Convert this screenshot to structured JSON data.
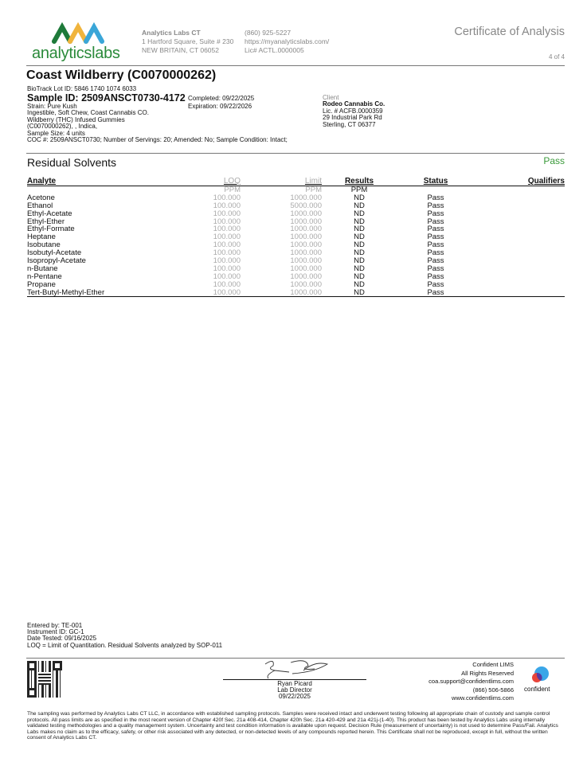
{
  "header": {
    "logo_text": "analyticslabs",
    "company": "Analytics Labs CT",
    "address1": "1 Hartford Square, Suite # 230",
    "address2": "NEW BRITAIN, CT 06052",
    "phone": "(860) 925-5227",
    "website": "https://myanalyticslabs.com/",
    "license": "Lic# ACTL.0000005",
    "doc_title": "Certificate of Analysis",
    "page": "4 of 4"
  },
  "sample": {
    "title": "Coast Wildberry (C0070000262)",
    "biotrack": "BioTrack Lot ID: 5846 1740 1074 6033",
    "sample_id": "Sample ID: 2509ANSCT0730-4172",
    "completed": "Completed: 09/22/2025",
    "expiration": "Expiration: 09/22/2026",
    "strain": "Strain: Pure Kush",
    "desc1": "Ingestible, Soft Chew, Coast Cannabis CO.",
    "desc2": "Wildberry (THC) Infused Gummies",
    "desc3": "(C0070000262), , Indica,",
    "size": "Sample Size: 4 units",
    "coc": "COC #: 2509ANSCT0730; Number of Servings: 20; Amended: No; Sample Condition: Intact;"
  },
  "client": {
    "label": "Client",
    "name": "Rodeo Cannabis Co.",
    "license": "Lic. # ACFB.0000359",
    "address1": "29 Industrial Park Rd",
    "address2": "Sterling, CT 06377"
  },
  "section": {
    "title": "Residual Solvents",
    "status": "Pass",
    "status_color": "#3a9a3a"
  },
  "table": {
    "headers": [
      "Analyte",
      "LOQ",
      "Limit",
      "Results",
      "Status",
      "Qualifiers"
    ],
    "units": [
      "",
      "PPM",
      "PPM",
      "PPM",
      "",
      ""
    ],
    "rows": [
      [
        "Acetone",
        "100.000",
        "1000.000",
        "ND",
        "Pass",
        ""
      ],
      [
        "Ethanol",
        "100.000",
        "5000.000",
        "ND",
        "Pass",
        ""
      ],
      [
        "Ethyl-Acetate",
        "100.000",
        "1000.000",
        "ND",
        "Pass",
        ""
      ],
      [
        "Ethyl-Ether",
        "100.000",
        "1000.000",
        "ND",
        "Pass",
        ""
      ],
      [
        "Ethyl-Formate",
        "100.000",
        "1000.000",
        "ND",
        "Pass",
        ""
      ],
      [
        "Heptane",
        "100.000",
        "1000.000",
        "ND",
        "Pass",
        ""
      ],
      [
        "Isobutane",
        "100.000",
        "1000.000",
        "ND",
        "Pass",
        ""
      ],
      [
        "Isobutyl-Acetate",
        "100.000",
        "1000.000",
        "ND",
        "Pass",
        ""
      ],
      [
        "Isopropyl-Acetate",
        "100.000",
        "1000.000",
        "ND",
        "Pass",
        ""
      ],
      [
        "n-Butane",
        "100.000",
        "1000.000",
        "ND",
        "Pass",
        ""
      ],
      [
        "n-Pentane",
        "100.000",
        "1000.000",
        "ND",
        "Pass",
        ""
      ],
      [
        "Propane",
        "100.000",
        "1000.000",
        "ND",
        "Pass",
        ""
      ],
      [
        "Tert-Butyl-Methyl-Ether",
        "100.000",
        "1000.000",
        "ND",
        "Pass",
        ""
      ]
    ]
  },
  "notes": [
    "Entered by: TE-001",
    "Instrument ID: GC-1",
    "Date Tested: 09/16/2025",
    "LOQ = Limit of Quantitation. Residual Solvents analyzed by SOP-011"
  ],
  "signature": {
    "name": "Ryan Picard",
    "role": "Lab Director",
    "date": "09/22/2025"
  },
  "lims": {
    "name": "Confident LIMS",
    "rights": "All Rights Reserved",
    "email": "coa.support@confidentlims.com",
    "phone": "(866) 506-5866",
    "web": "www.confidentlims.com",
    "logo_text": "confident"
  },
  "disclaimer": "The sampling was performed by Analytics Labs CT LLC, in accordance with established sampling protocols. Samples were received intact and underwent testing following all appropriate chain of custody and sample control protocols. All pass limits are as specified in the most recent version of Chapter 420f Sec. 21a 408-414, Chapter 420h Sec. 21a 420-429 and 21a 421j-(1-40). This product has been tested by Analytics Labs using internally validated testing methodologies and a quality management system. Uncertainty and test condition information is available upon request. Decision Rule (measurement of uncertainty) is not used to determine Pass/Fail. Analytics Labs makes no claim as to the efficacy, safety, or other risk associated with any detected, or non-detected levels of any compounds reported herein. This Certificate shall not be reproduced, except in full, without the written consent of Analytics Labs CT."
}
